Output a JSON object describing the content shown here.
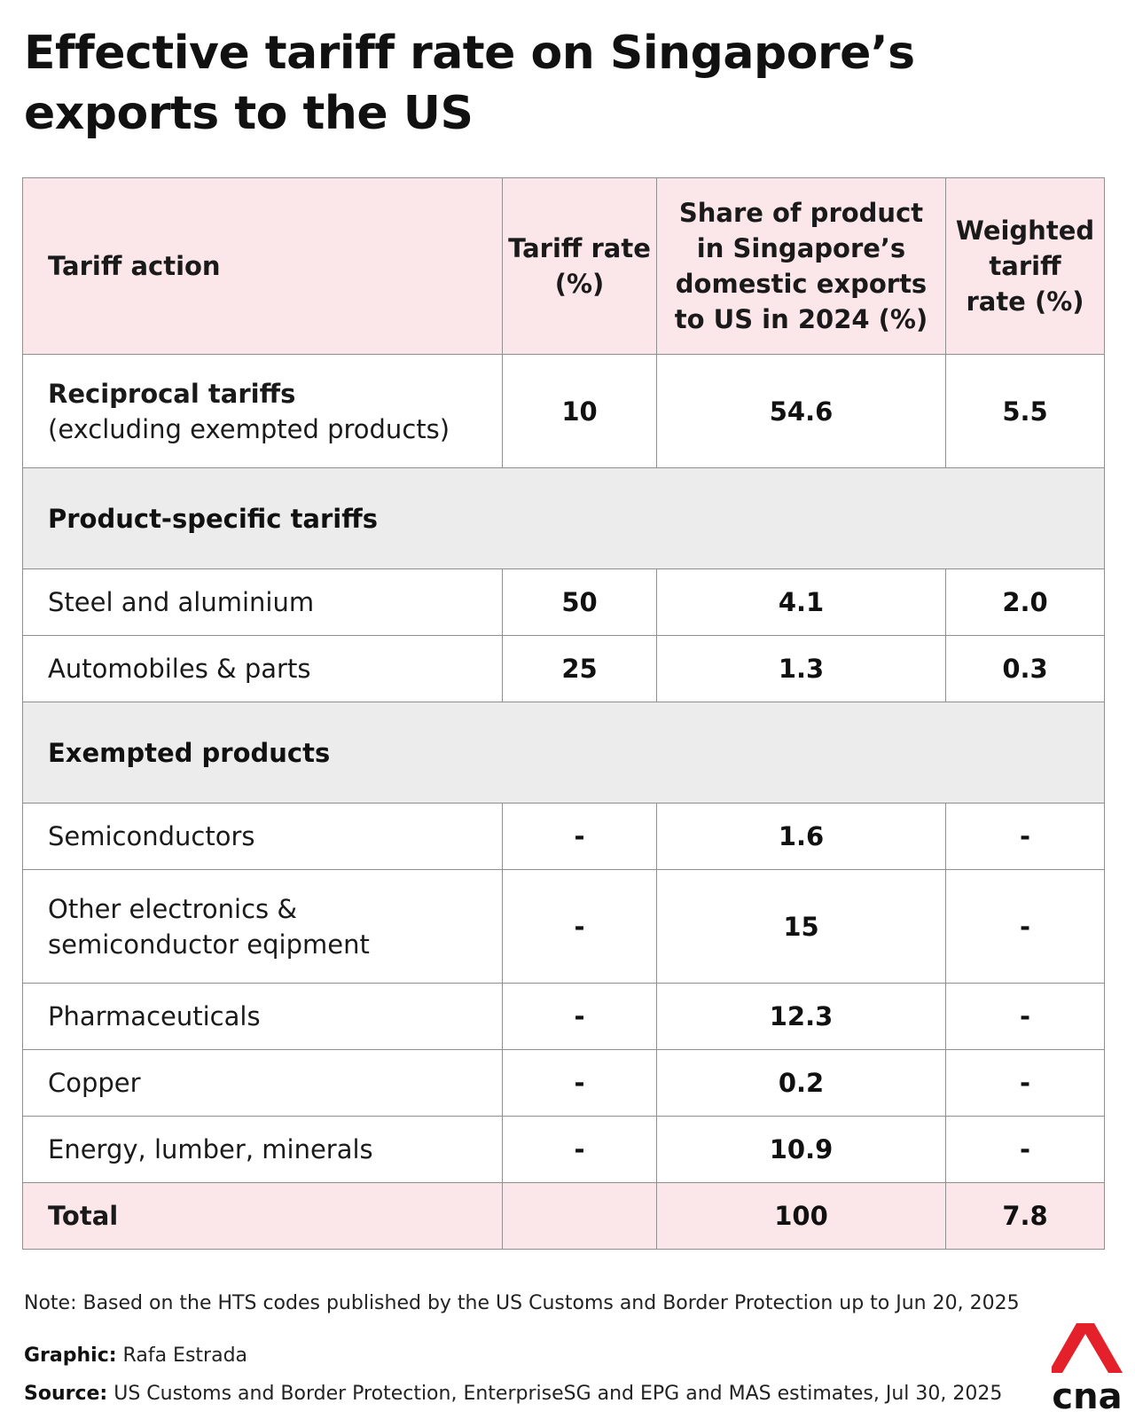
{
  "title": "Effective tariff rate on Singapore’s exports to the US",
  "table": {
    "headers": [
      "Tariff action",
      "Tariff rate (%)",
      "Share of product in Singapore’s domestic exports to US in 2024 (%)",
      "Weighted tariff rate (%)"
    ],
    "reciprocal": {
      "label": "Reciprocal tariffs",
      "sublabel": "(excluding exempted products)",
      "rate": "10",
      "share": "54.6",
      "weighted": "5.5"
    },
    "section_product_specific": "Product-specific tariffs",
    "product_specific_rows": [
      {
        "label": "Steel and aluminium",
        "rate": "50",
        "share": "4.1",
        "weighted": "2.0"
      },
      {
        "label": "Automobiles & parts",
        "rate": "25",
        "share": "1.3",
        "weighted": "0.3"
      }
    ],
    "section_exempted": "Exempted products",
    "exempted_rows": [
      {
        "label": "Semiconductors",
        "rate": "-",
        "share": "1.6",
        "weighted": "-"
      },
      {
        "label": "Other electronics & semiconductor eqipment",
        "rate": "-",
        "share": "15",
        "weighted": "-"
      },
      {
        "label": "Pharmaceuticals",
        "rate": "-",
        "share": "12.3",
        "weighted": "-"
      },
      {
        "label": "Copper",
        "rate": "-",
        "share": "0.2",
        "weighted": "-"
      },
      {
        "label": "Energy, lumber, minerals",
        "rate": "-",
        "share": "10.9",
        "weighted": "-"
      }
    ],
    "total": {
      "label": "Total",
      "rate": "",
      "share": "100",
      "weighted": "7.8"
    }
  },
  "note": "Note: Based on the HTS codes published by the US Customs and Border Protection up to Jun 20, 2025",
  "graphic": {
    "label": "Graphic:",
    "value": "Rafa Estrada"
  },
  "source": {
    "label": "Source:",
    "value": "US Customs and Border Protection, EnterpriseSG and EPG and MAS estimates, Jul 30, 2025"
  },
  "logo": {
    "text": "cna",
    "color": "#e4202a"
  },
  "chart_data": {
    "type": "table",
    "title": "Effective tariff rate on Singapore’s exports to the US",
    "columns": [
      "Tariff action",
      "Tariff rate (%)",
      "Share of product in Singapore’s domestic exports to US in 2024 (%)",
      "Weighted tariff rate (%)"
    ],
    "rows": [
      [
        "Reciprocal tariffs (excluding exempted products)",
        "10",
        "54.6",
        "5.5"
      ],
      [
        "Product-specific tariffs",
        "",
        "",
        ""
      ],
      [
        "Steel and aluminium",
        "50",
        "4.1",
        "2.0"
      ],
      [
        "Automobiles & parts",
        "25",
        "1.3",
        "0.3"
      ],
      [
        "Exempted products",
        "",
        "",
        ""
      ],
      [
        "Semiconductors",
        "-",
        "1.6",
        "-"
      ],
      [
        "Other electronics & semiconductor eqipment",
        "-",
        "15",
        "-"
      ],
      [
        "Pharmaceuticals",
        "-",
        "12.3",
        "-"
      ],
      [
        "Copper",
        "-",
        "0.2",
        "-"
      ],
      [
        "Energy, lumber, minerals",
        "-",
        "10.9",
        "-"
      ],
      [
        "Total",
        "",
        "100",
        "7.8"
      ]
    ]
  }
}
